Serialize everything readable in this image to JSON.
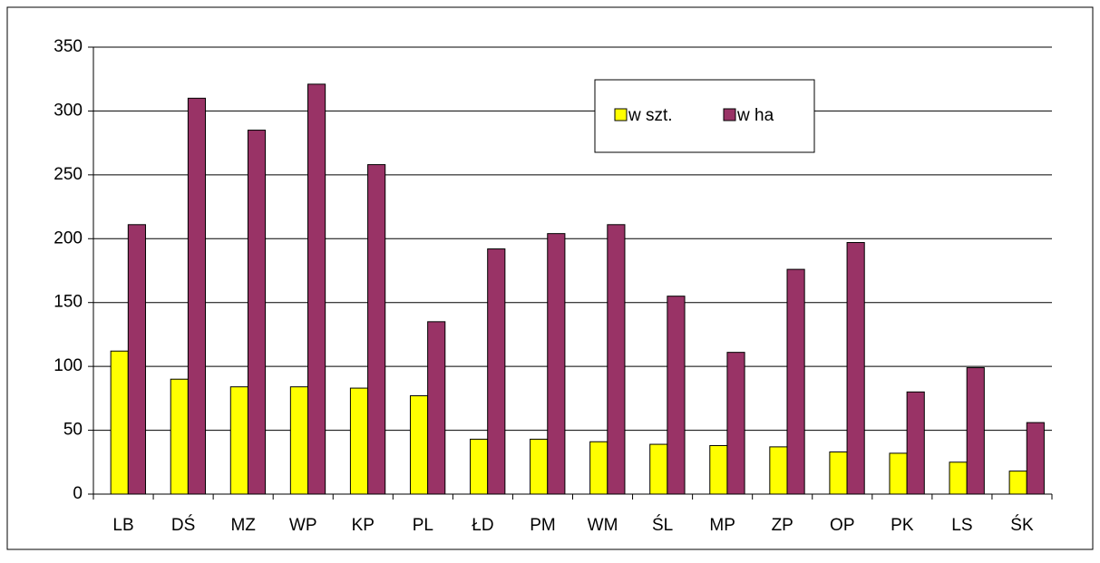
{
  "chart_data": {
    "type": "bar",
    "categories": [
      "LB",
      "DŚ",
      "MZ",
      "WP",
      "KP",
      "PL",
      "ŁD",
      "PM",
      "WM",
      "ŚL",
      "MP",
      "ZP",
      "OP",
      "PK",
      "LS",
      "ŚK"
    ],
    "series": [
      {
        "name": "w szt.",
        "color": "#ffff00",
        "values": [
          112,
          90,
          84,
          84,
          83,
          77,
          43,
          43,
          41,
          39,
          38,
          37,
          33,
          32,
          25,
          18
        ]
      },
      {
        "name": "w ha",
        "color": "#993366",
        "values": [
          211,
          310,
          285,
          321,
          258,
          135,
          192,
          204,
          211,
          155,
          111,
          176,
          197,
          80,
          99,
          56
        ]
      }
    ],
    "ylim": [
      0,
      350
    ],
    "yticks": [
      0,
      50,
      100,
      150,
      200,
      250,
      300,
      350
    ],
    "grid": true,
    "legend": "top-right"
  }
}
